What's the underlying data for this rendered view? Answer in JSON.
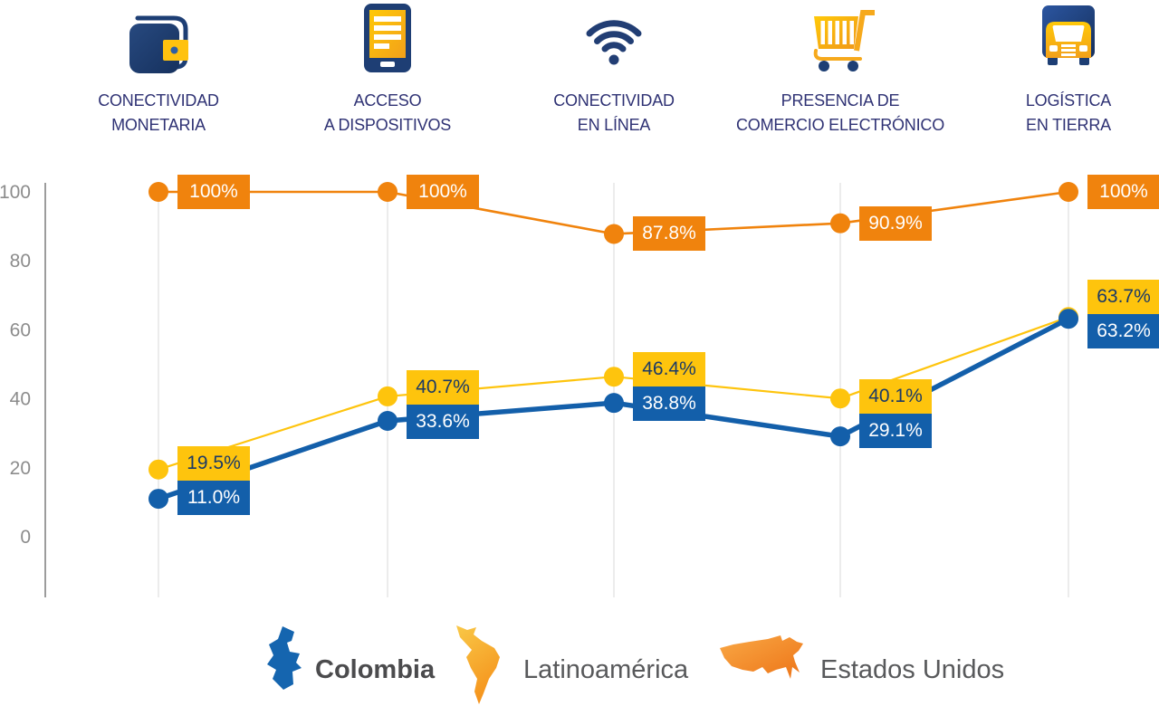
{
  "header": {
    "categories": [
      {
        "label": "CONECTIVIDAD\nMONETARIA",
        "icon": "wallet-icon"
      },
      {
        "label": "ACCESO\nA DISPOSITIVOS",
        "icon": "tablet-icon"
      },
      {
        "label": "CONECTIVIDAD\nEN LÍNEA",
        "icon": "wifi-icon"
      },
      {
        "label": "PRESENCIA DE\nCOMERCIO ELECTRÓNICO",
        "icon": "cart-icon"
      },
      {
        "label": "LOGÍSTICA\nEN TIERRA",
        "icon": "truck-icon"
      }
    ]
  },
  "chart_data": {
    "type": "line",
    "categories": [
      "CONECTIVIDAD MONETARIA",
      "ACCESO A DISPOSITIVOS",
      "CONECTIVIDAD EN LÍNEA",
      "PRESENCIA DE COMERCIO ELECTRÓNICO",
      "LOGÍSTICA EN TIERRA"
    ],
    "series": [
      {
        "name": "Colombia",
        "color": "#135FAA",
        "values": [
          11.0,
          33.6,
          38.8,
          29.1,
          63.2
        ],
        "labels": [
          "11.0%",
          "33.6%",
          "38.8%",
          "29.1%",
          "63.2%"
        ]
      },
      {
        "name": "Latinoamérica",
        "color": "#FEC40D",
        "values": [
          19.5,
          40.7,
          46.4,
          40.1,
          63.7
        ],
        "labels": [
          "19.5%",
          "40.7%",
          "46.4%",
          "40.1%",
          "63.7%"
        ]
      },
      {
        "name": "Estados Unidos",
        "color": "#F0830D",
        "values": [
          100,
          100,
          87.8,
          90.9,
          100
        ],
        "labels": [
          "100%",
          "100%",
          "87.8%",
          "90.9%",
          "100%"
        ]
      }
    ],
    "y_ticks": [
      0,
      20,
      40,
      60,
      80,
      100
    ],
    "ylim": [
      0,
      100
    ],
    "grid": "vertical-only",
    "legend_position": "bottom"
  },
  "legend": {
    "items": [
      {
        "label": "Colombia",
        "map_icon": "colombia-map-icon",
        "color": "#135FAA"
      },
      {
        "label": "Latinoamérica",
        "map_icon": "latam-map-icon",
        "color": "#FEC40D"
      },
      {
        "label": "Estados Unidos",
        "map_icon": "usa-map-icon",
        "color": "#F0830D"
      }
    ]
  },
  "colors": {
    "colombia_blue": "#135FAA",
    "latam_yellow": "#FEC40D",
    "us_orange": "#F0830D",
    "value_text_on_yellow": "#1C3A66",
    "value_text_on_blue": "#FFFFFF",
    "value_text_on_orange": "#FFFFFF",
    "category_label_navy": "#2F3274",
    "icon_navy": "#1D3E74",
    "axis_gray": "#8C8C8C",
    "gridline_gray": "#ECECEC",
    "legend_text_gray": "#58595B"
  }
}
